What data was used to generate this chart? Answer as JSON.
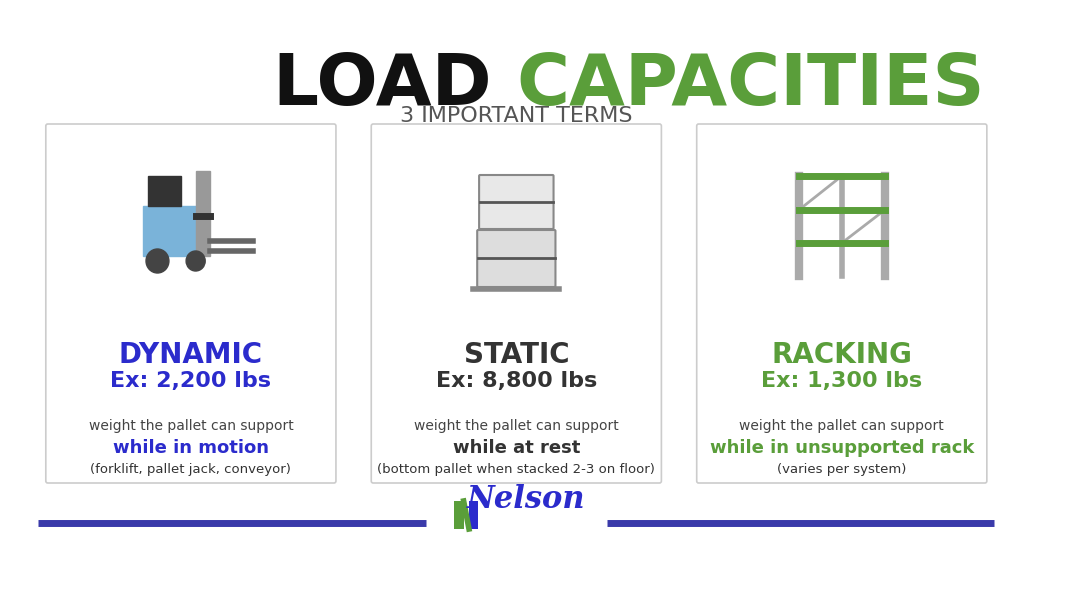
{
  "title_black": "LOAD ",
  "title_green": "CAPACITIES",
  "subtitle": "3 IMPORTANT TERMS",
  "title_black_color": "#111111",
  "title_green_color": "#5a9e3a",
  "subtitle_color": "#555555",
  "bg_color": "#ffffff",
  "card_border_color": "#cccccc",
  "cards": [
    {
      "term": "DYNAMIC",
      "term_color": "#2b2bcc",
      "example": "Ex: 2,200 lbs",
      "example_color": "#2b2bcc",
      "desc1": "weight the pallet can support",
      "desc2": "while in motion",
      "desc2_bold": true,
      "desc2_color": "#2b2bcc",
      "desc3": "(forklift, pallet jack, conveyor)",
      "desc3_color": "#333333",
      "icon_type": "forklift"
    },
    {
      "term": "STATIC",
      "term_color": "#333333",
      "example": "Ex: 8,800 lbs",
      "example_color": "#333333",
      "desc1": "weight the pallet can support",
      "desc2": "while at rest",
      "desc2_bold": true,
      "desc2_color": "#333333",
      "desc3": "(bottom pallet when stacked 2-3 on floor)",
      "desc3_color": "#333333",
      "icon_type": "stacked_pallets"
    },
    {
      "term": "RACKING",
      "term_color": "#5a9e3a",
      "example": "Ex: 1,300 lbs",
      "example_color": "#5a9e3a",
      "desc1": "weight the pallet can support",
      "desc2": "while in unsupported rack",
      "desc2_bold": true,
      "desc2_color": "#5a9e3a",
      "desc3": "(varies per system)",
      "desc3_color": "#333333",
      "icon_type": "rack"
    }
  ],
  "footer_line_color": "#3a3aaa",
  "footer_logo_text": "Nelson",
  "footer_logo_color": "#2b2bcc",
  "nelson_n_green": "#5a9e3a",
  "nelson_n_blue": "#2b2bcc"
}
